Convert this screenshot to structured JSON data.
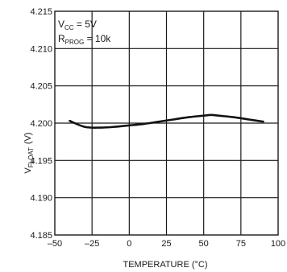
{
  "chart_data": {
    "type": "line",
    "xlabel": "TEMPERATURE (°C)",
    "ylabel_main": "V",
    "ylabel_sub": "FLOAT",
    "ylabel_unit": "(V)",
    "xlim": [
      -50,
      100
    ],
    "ylim": [
      4.185,
      4.215
    ],
    "x_ticks": [
      -50,
      -25,
      0,
      25,
      50,
      75,
      100
    ],
    "x_tick_labels": [
      "–50",
      "–25",
      "0",
      "25",
      "50",
      "75",
      "100"
    ],
    "y_ticks": [
      4.185,
      4.19,
      4.195,
      4.2,
      4.205,
      4.21,
      4.215
    ],
    "y_tick_labels": [
      "4.185",
      "4.190",
      "4.195",
      "4.200",
      "4.205",
      "4.210",
      "4.215"
    ],
    "grid": true,
    "annotations": [
      {
        "main": "V",
        "sub": "CC",
        "rest": " = 5V"
      },
      {
        "main": "R",
        "sub": "PROG",
        "rest": " = 10k"
      }
    ],
    "series": [
      {
        "x": [
          -40,
          -30,
          -20,
          -10,
          0,
          10,
          20,
          30,
          40,
          50,
          55,
          60,
          70,
          80,
          90
        ],
        "y": [
          4.2003,
          4.1995,
          4.1994,
          4.1995,
          4.1997,
          4.1999,
          4.2002,
          4.2005,
          4.2008,
          4.201,
          4.2011,
          4.201,
          4.2008,
          4.2005,
          4.2002
        ]
      }
    ]
  }
}
